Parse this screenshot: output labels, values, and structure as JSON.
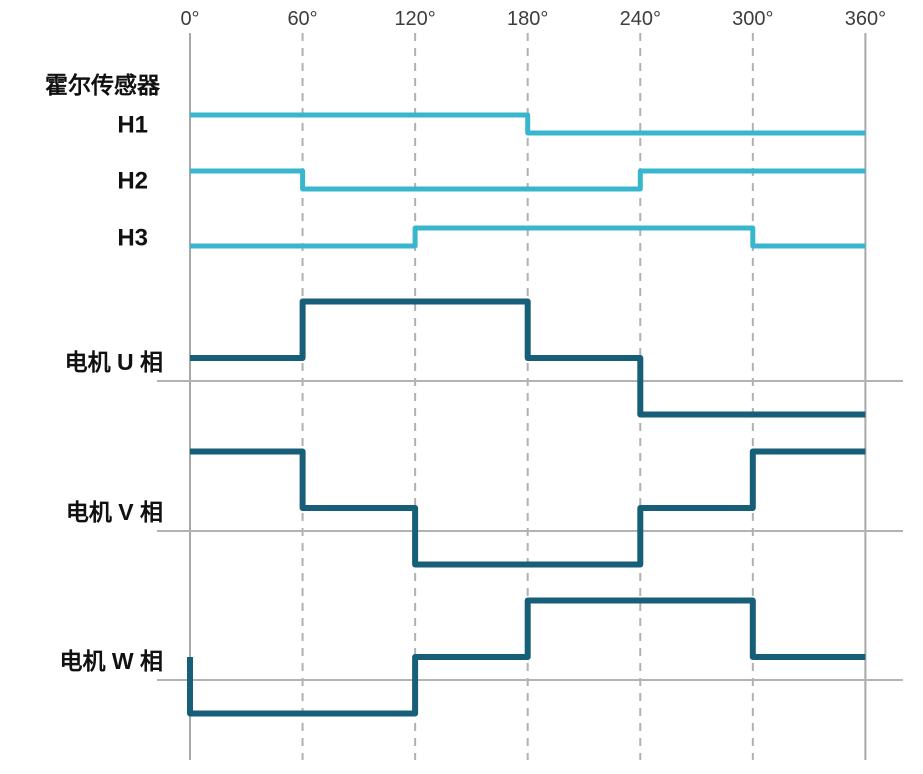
{
  "colors": {
    "background": "#ffffff",
    "hall_signal": "#38b6ce",
    "phase_signal": "#175e79",
    "axis_line_solid": "#a8a8a8",
    "gridline_dashed": "#b0b0b0",
    "phase_baseline": "#b3b3b3",
    "tick_label_text": "#3d3d3d",
    "signal_label_text": "#111111"
  },
  "labels": {
    "hall_group_header": "霍尔传感器",
    "hall_signals": [
      "H1",
      "H2",
      "H3"
    ],
    "phase_signals": [
      "电机 U 相",
      "电机 V 相",
      "电机 W 相"
    ]
  },
  "axis": {
    "ticks": [
      {
        "deg": 0,
        "label": "0°",
        "style": "solid"
      },
      {
        "deg": 60,
        "label": "60°",
        "style": "dashed"
      },
      {
        "deg": 120,
        "label": "120°",
        "style": "dashed"
      },
      {
        "deg": 180,
        "label": "180°",
        "style": "dashed"
      },
      {
        "deg": 240,
        "label": "240°",
        "style": "dashed"
      },
      {
        "deg": 300,
        "label": "300°",
        "style": "dashed"
      },
      {
        "deg": 360,
        "label": "360°",
        "style": "solid"
      }
    ]
  },
  "chart_data": {
    "type": "line",
    "subtype": "digital-timing-step",
    "x_unit": "degrees",
    "x_range": [
      0,
      360
    ],
    "x_ticks": [
      0,
      60,
      120,
      180,
      240,
      300,
      360
    ],
    "grid": "vertical-dashed-every-60deg",
    "legend_position": "left-row-labels",
    "group_header": "霍尔传感器",
    "series": [
      {
        "id": "h1",
        "name": "H1",
        "group": "hall",
        "levels": "binary(0,1)",
        "points": [
          [
            0,
            1
          ],
          [
            180,
            0
          ]
        ],
        "end_deg": 360
      },
      {
        "id": "h2",
        "name": "H2",
        "group": "hall",
        "levels": "binary(0,1)",
        "points": [
          [
            0,
            1
          ],
          [
            60,
            0
          ],
          [
            240,
            1
          ]
        ],
        "end_deg": 360
      },
      {
        "id": "h3",
        "name": "H3",
        "group": "hall",
        "levels": "binary(0,1)",
        "points": [
          [
            0,
            0
          ],
          [
            120,
            1
          ],
          [
            300,
            0
          ]
        ],
        "end_deg": 360
      },
      {
        "id": "u",
        "name": "电机 U 相",
        "group": "phase",
        "levels": "ternary(-1,0,+1)",
        "points": [
          [
            0,
            0
          ],
          [
            60,
            1
          ],
          [
            180,
            0
          ],
          [
            240,
            -1
          ]
        ],
        "end_deg": 360
      },
      {
        "id": "v",
        "name": "电机 V 相",
        "group": "phase",
        "levels": "ternary(-1,0,+1)",
        "points": [
          [
            0,
            1
          ],
          [
            60,
            0
          ],
          [
            120,
            -1
          ],
          [
            240,
            0
          ],
          [
            300,
            1
          ]
        ],
        "end_deg": 360
      },
      {
        "id": "w",
        "name": "电机 W 相",
        "group": "phase",
        "levels": "ternary(-1,0,+1)",
        "points": [
          [
            0,
            0
          ],
          [
            0,
            -1
          ],
          [
            120,
            0
          ],
          [
            180,
            1
          ],
          [
            300,
            0
          ]
        ],
        "end_deg": 360
      }
    ]
  }
}
